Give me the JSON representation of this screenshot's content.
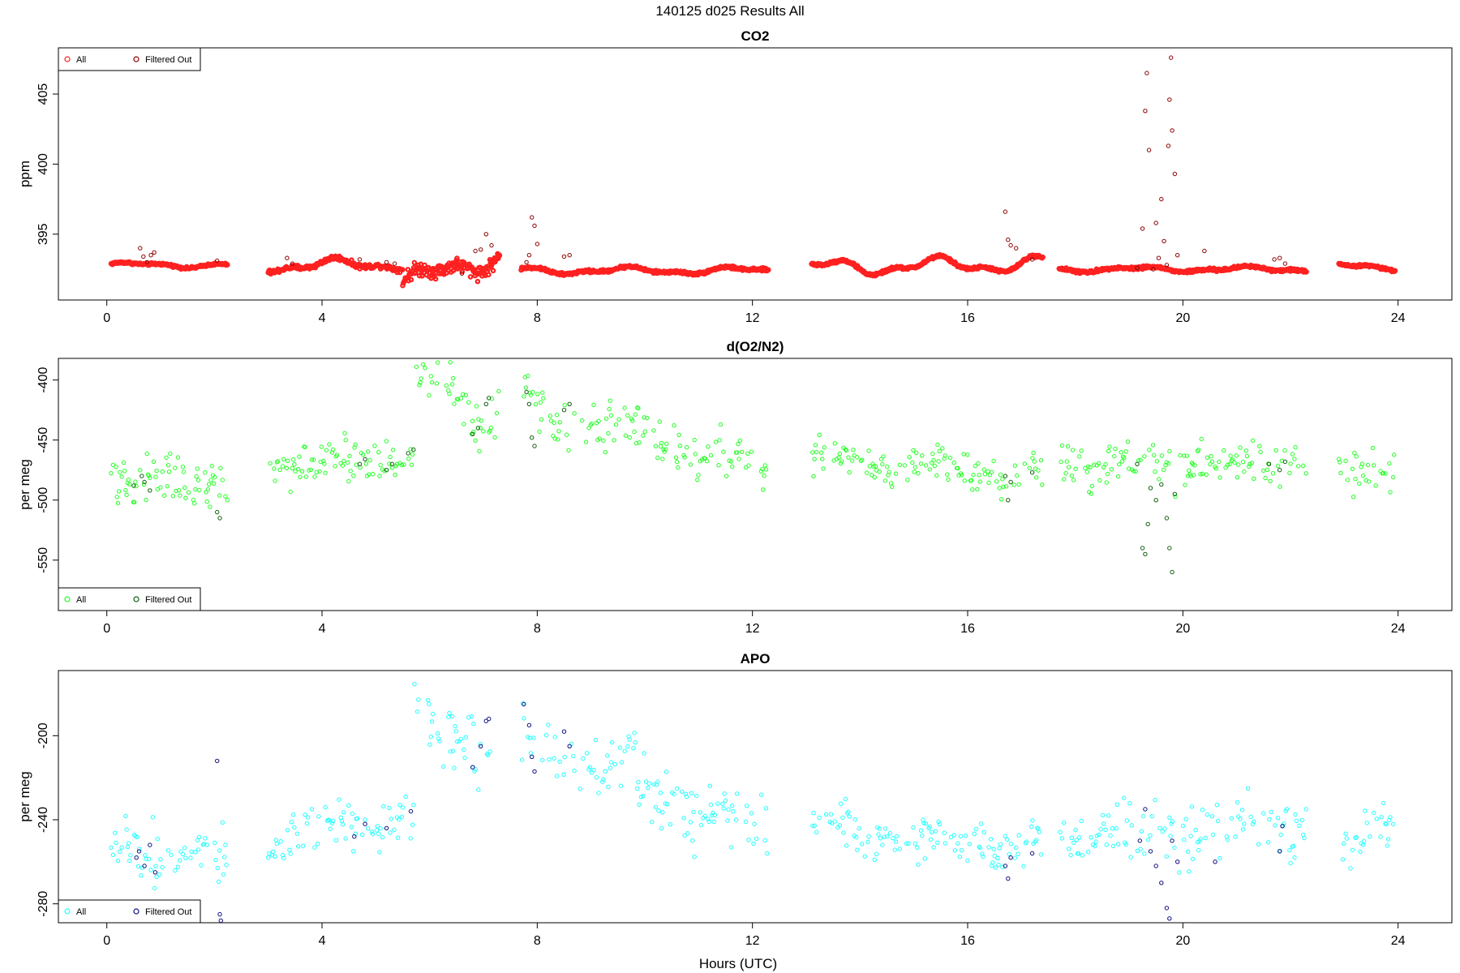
{
  "figure": {
    "title": "140125   d025   Results All",
    "xlabel": "Hours (UTC)"
  },
  "chart_data": [
    {
      "type": "scatter",
      "title": "CO2",
      "ylabel": "ppm",
      "xlim": [
        -0.9,
        25.0
      ],
      "ylim": [
        390.3,
        408.3
      ],
      "xticks": [
        0,
        4,
        8,
        12,
        16,
        20,
        24
      ],
      "yticks": [
        395,
        400,
        405
      ],
      "legend": {
        "position": "top-left",
        "entries": [
          "All",
          "Filtered Out"
        ]
      },
      "colors": {
        "all": "#ff2020",
        "filtered": "#8b0000"
      },
      "segments": [
        {
          "x0": 0.08,
          "x1": 2.25,
          "base": 392.8,
          "drift": 0.0,
          "wiggle": 0.15,
          "noise": 0.04
        },
        {
          "x0": 3.0,
          "x1": 5.5,
          "base": 392.7,
          "drift": 0.2,
          "wiggle": 0.35,
          "noise": 0.08
        },
        {
          "x0": 5.5,
          "x1": 7.3,
          "base": 391.4,
          "drift": 2.2,
          "wiggle": 0.6,
          "noise": 0.25
        },
        {
          "x0": 7.7,
          "x1": 12.3,
          "base": 392.4,
          "drift": 0.0,
          "wiggle": 0.2,
          "noise": 0.05
        },
        {
          "x0": 13.1,
          "x1": 17.4,
          "base": 392.6,
          "drift": 0.3,
          "wiggle": 0.45,
          "noise": 0.05
        },
        {
          "x0": 17.7,
          "x1": 22.3,
          "base": 392.5,
          "drift": 0.0,
          "wiggle": 0.15,
          "noise": 0.05
        },
        {
          "x0": 22.9,
          "x1": 23.95,
          "base": 392.7,
          "drift": 0.0,
          "wiggle": 0.2,
          "noise": 0.04
        }
      ],
      "filtered": [
        [
          0.62,
          394.0
        ],
        [
          0.68,
          393.4
        ],
        [
          0.75,
          393.0
        ],
        [
          0.82,
          393.5
        ],
        [
          0.88,
          393.7
        ],
        [
          2.05,
          393.1
        ],
        [
          3.35,
          393.3
        ],
        [
          3.45,
          392.9
        ],
        [
          4.7,
          393.2
        ],
        [
          5.2,
          393.0
        ],
        [
          5.35,
          392.9
        ],
        [
          6.6,
          392.2
        ],
        [
          6.85,
          393.8
        ],
        [
          6.95,
          393.9
        ],
        [
          7.05,
          395.0
        ],
        [
          7.15,
          394.2
        ],
        [
          7.8,
          393.0
        ],
        [
          7.85,
          393.5
        ],
        [
          7.9,
          396.2
        ],
        [
          7.95,
          395.6
        ],
        [
          8.0,
          394.3
        ],
        [
          8.5,
          393.4
        ],
        [
          8.6,
          393.5
        ],
        [
          16.7,
          396.6
        ],
        [
          16.75,
          394.6
        ],
        [
          16.8,
          394.2
        ],
        [
          16.9,
          394.0
        ],
        [
          17.2,
          393.2
        ],
        [
          19.15,
          392.6
        ],
        [
          19.25,
          395.4
        ],
        [
          19.3,
          403.8
        ],
        [
          19.33,
          406.5
        ],
        [
          19.37,
          401.0
        ],
        [
          19.45,
          392.5
        ],
        [
          19.5,
          395.8
        ],
        [
          19.55,
          393.3
        ],
        [
          19.6,
          397.5
        ],
        [
          19.65,
          394.5
        ],
        [
          19.7,
          392.8
        ],
        [
          19.73,
          401.3
        ],
        [
          19.75,
          404.6
        ],
        [
          19.78,
          407.6
        ],
        [
          19.8,
          402.4
        ],
        [
          19.85,
          399.3
        ],
        [
          19.9,
          393.5
        ],
        [
          20.4,
          393.8
        ],
        [
          21.7,
          393.2
        ],
        [
          21.8,
          393.3
        ],
        [
          21.9,
          392.9
        ]
      ]
    },
    {
      "type": "scatter",
      "title": "d(O2/N2)",
      "ylabel": "per meg",
      "xlim": [
        -0.9,
        25.0
      ],
      "ylim": [
        -592,
        -382
      ],
      "xticks": [
        0,
        4,
        8,
        12,
        16,
        20,
        24
      ],
      "yticks": [
        -550,
        -500,
        -450,
        -400
      ],
      "legend": {
        "position": "bottom-left",
        "entries": [
          "All",
          "Filtered Out"
        ]
      },
      "colors": {
        "all": "#22ff22",
        "filtered": "#0f5f0f"
      },
      "segments": [
        {
          "x0": 0.08,
          "x1": 2.25,
          "base": -483,
          "drift": 0,
          "wiggle": 4,
          "noise": 13
        },
        {
          "x0": 3.0,
          "x1": 5.7,
          "base": -473,
          "drift": 8,
          "wiggle": 4,
          "noise": 9
        },
        {
          "x0": 5.7,
          "x1": 7.3,
          "base": -410,
          "drift": -8,
          "wiggle": 18,
          "noise": 12
        },
        {
          "x0": 7.7,
          "x1": 12.3,
          "base": -420,
          "drift": -55,
          "wiggle": 8,
          "noise": 10
        },
        {
          "x0": 13.1,
          "x1": 17.4,
          "base": -465,
          "drift": -15,
          "wiggle": 6,
          "noise": 7
        },
        {
          "x0": 17.7,
          "x1": 22.3,
          "base": -473,
          "drift": 3,
          "wiggle": 4,
          "noise": 9
        },
        {
          "x0": 22.9,
          "x1": 23.95,
          "base": -482,
          "drift": 16,
          "wiggle": 3,
          "noise": 10
        }
      ],
      "filtered": [
        [
          0.5,
          -488
        ],
        [
          0.65,
          -480
        ],
        [
          0.7,
          -485
        ],
        [
          0.8,
          -492
        ],
        [
          2.05,
          -510
        ],
        [
          2.1,
          -515
        ],
        [
          4.7,
          -470
        ],
        [
          4.8,
          -466
        ],
        [
          5.2,
          -475
        ],
        [
          5.3,
          -470
        ],
        [
          5.6,
          -461
        ],
        [
          5.7,
          -458
        ],
        [
          6.8,
          -445
        ],
        [
          6.9,
          -440
        ],
        [
          7.05,
          -420
        ],
        [
          7.1,
          -415
        ],
        [
          7.8,
          -410
        ],
        [
          7.85,
          -420
        ],
        [
          7.9,
          -448
        ],
        [
          7.95,
          -455
        ],
        [
          8.5,
          -425
        ],
        [
          8.6,
          -420
        ],
        [
          16.7,
          -480
        ],
        [
          16.75,
          -500
        ],
        [
          16.8,
          -485
        ],
        [
          17.2,
          -477
        ],
        [
          19.15,
          -470
        ],
        [
          19.25,
          -540
        ],
        [
          19.3,
          -545
        ],
        [
          19.35,
          -520
        ],
        [
          19.4,
          -490
        ],
        [
          19.5,
          -500
        ],
        [
          19.6,
          -487
        ],
        [
          19.7,
          -515
        ],
        [
          19.75,
          -540
        ],
        [
          19.8,
          -560
        ],
        [
          19.85,
          -495
        ],
        [
          21.6,
          -470
        ],
        [
          21.8,
          -475
        ],
        [
          21.9,
          -468
        ]
      ]
    },
    {
      "type": "scatter",
      "title": "APO",
      "ylabel": "per meg",
      "xlim": [
        -0.9,
        25.0
      ],
      "ylim": [
        -289,
        -169
      ],
      "xticks": [
        0,
        4,
        8,
        12,
        16,
        20,
        24
      ],
      "yticks": [
        -280,
        -240,
        -200
      ],
      "legend": {
        "position": "bottom-left",
        "entries": [
          "All",
          "Filtered Out"
        ]
      },
      "colors": {
        "all": "#22ffff",
        "filtered": "#10107f"
      },
      "segments": [
        {
          "x0": 0.08,
          "x1": 2.25,
          "base": -256,
          "drift": 0,
          "wiggle": 3,
          "noise": 7
        },
        {
          "x0": 3.0,
          "x1": 5.7,
          "base": -250,
          "drift": 12,
          "wiggle": 3,
          "noise": 6
        },
        {
          "x0": 5.7,
          "x1": 7.3,
          "base": -200,
          "drift": 0,
          "wiggle": 12,
          "noise": 9
        },
        {
          "x0": 7.7,
          "x1": 12.3,
          "base": -198,
          "drift": -50,
          "wiggle": 6,
          "noise": 8
        },
        {
          "x0": 13.1,
          "x1": 17.4,
          "base": -243,
          "drift": -12,
          "wiggle": 4,
          "noise": 5
        },
        {
          "x0": 17.7,
          "x1": 22.3,
          "base": -250,
          "drift": 6,
          "wiggle": 3,
          "noise": 7
        },
        {
          "x0": 22.9,
          "x1": 23.95,
          "base": -258,
          "drift": 20,
          "wiggle": 3,
          "noise": 7
        }
      ],
      "filtered": [
        [
          0.55,
          -258
        ],
        [
          0.6,
          -255
        ],
        [
          0.7,
          -262
        ],
        [
          0.8,
          -252
        ],
        [
          0.9,
          -265
        ],
        [
          2.05,
          -212
        ],
        [
          2.1,
          -285
        ],
        [
          2.12,
          -288
        ],
        [
          4.6,
          -248
        ],
        [
          4.8,
          -242
        ],
        [
          5.2,
          -244
        ],
        [
          5.65,
          -236
        ],
        [
          6.8,
          -215
        ],
        [
          6.95,
          -205
        ],
        [
          7.05,
          -193
        ],
        [
          7.1,
          -192
        ],
        [
          7.75,
          -185
        ],
        [
          7.85,
          -195
        ],
        [
          7.9,
          -210
        ],
        [
          7.95,
          -217
        ],
        [
          8.5,
          -198
        ],
        [
          8.6,
          -205
        ],
        [
          16.7,
          -262
        ],
        [
          16.75,
          -268
        ],
        [
          16.8,
          -258
        ],
        [
          17.2,
          -256
        ],
        [
          19.2,
          -250
        ],
        [
          19.3,
          -235
        ],
        [
          19.4,
          -255
        ],
        [
          19.5,
          -262
        ],
        [
          19.6,
          -270
        ],
        [
          19.7,
          -282
        ],
        [
          19.75,
          -287
        ],
        [
          19.8,
          -250
        ],
        [
          19.9,
          -260
        ],
        [
          20.6,
          -260
        ],
        [
          21.8,
          -255
        ],
        [
          21.85,
          -243
        ]
      ]
    }
  ]
}
